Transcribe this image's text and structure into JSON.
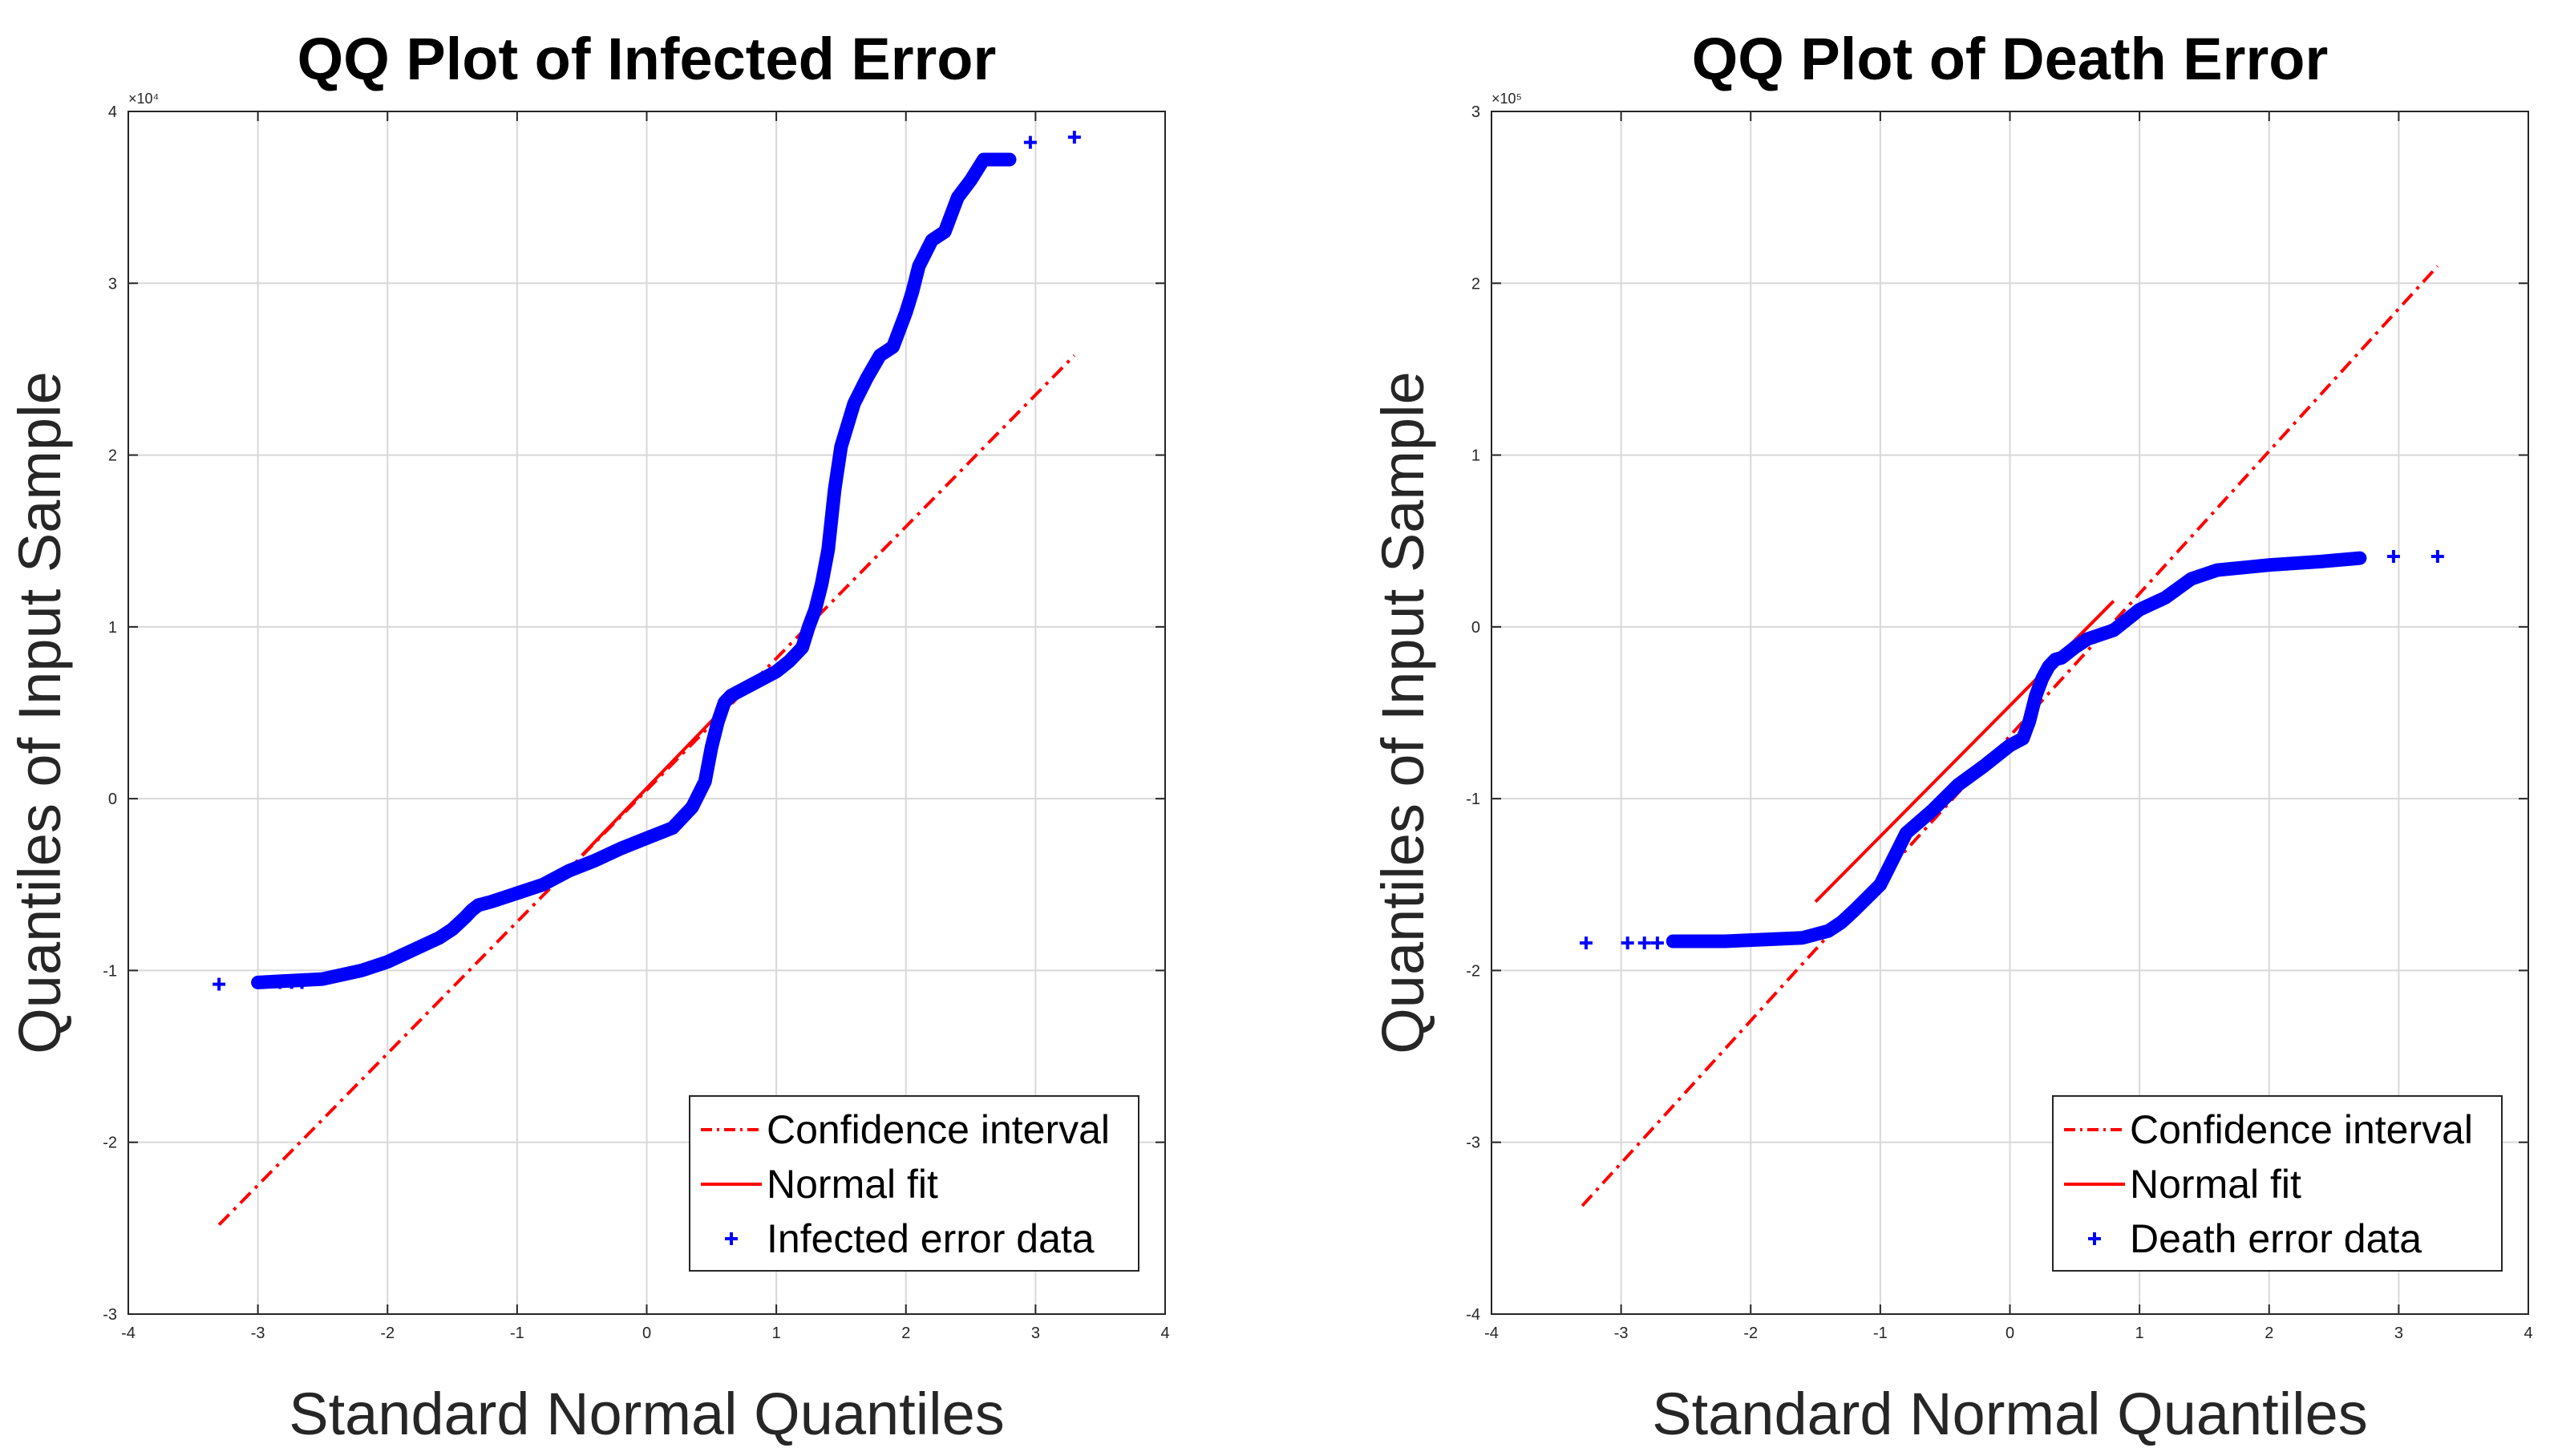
{
  "colors": {
    "fit": "#ff0000",
    "data": "#0000ff"
  },
  "chart_data": [
    {
      "type": "scatter",
      "title": "QQ Plot of Infected Error",
      "xlabel": "Standard Normal Quantiles",
      "ylabel": "Quantiles of Input Sample",
      "xlim": [
        -4,
        4
      ],
      "ylim": [
        -3,
        4
      ],
      "y_multiplier": "×10⁴",
      "xticks": [
        "-4",
        "-3",
        "-2",
        "-1",
        "0",
        "1",
        "2",
        "3",
        "4"
      ],
      "yticks": [
        "-3",
        "-2",
        "-1",
        "0",
        "1",
        "2",
        "3",
        "4"
      ],
      "grid": true,
      "legend": {
        "position": "bottom-right",
        "entries": [
          "Confidence interval",
          "Normal fit",
          "Infected error data"
        ]
      },
      "reference_line": {
        "x": [
          -3.3,
          3.3
        ],
        "y": [
          -2.48,
          2.58
        ]
      },
      "normal_fit": {
        "x": [
          -0.5,
          0.6
        ],
        "y": [
          -0.33,
          0.53
        ]
      },
      "data_curve": {
        "x": [
          -3.0,
          -2.5,
          -2.2,
          -2.0,
          -1.8,
          -1.6,
          -1.5,
          -1.4,
          -1.35,
          -1.3,
          -1.2,
          -1.0,
          -0.8,
          -0.6,
          -0.4,
          -0.2,
          0.0,
          0.2,
          0.35,
          0.45,
          0.5,
          0.55,
          0.6,
          0.65,
          0.7,
          0.8,
          1.0,
          1.1,
          1.2,
          1.25,
          1.3,
          1.35,
          1.4,
          1.45,
          1.5,
          1.6,
          1.7,
          1.8,
          1.9,
          2.0,
          2.05,
          2.1,
          2.2,
          2.3,
          2.4,
          2.5,
          2.6,
          2.8
        ],
        "y": [
          -1.07,
          -1.05,
          -1.0,
          -0.95,
          -0.88,
          -0.81,
          -0.76,
          -0.69,
          -0.65,
          -0.62,
          -0.6,
          -0.55,
          -0.5,
          -0.42,
          -0.36,
          -0.29,
          -0.23,
          -0.17,
          -0.05,
          0.1,
          0.3,
          0.45,
          0.56,
          0.6,
          0.62,
          0.66,
          0.74,
          0.8,
          0.88,
          1.0,
          1.1,
          1.25,
          1.45,
          1.8,
          2.05,
          2.3,
          2.45,
          2.58,
          2.63,
          2.83,
          2.95,
          3.1,
          3.25,
          3.3,
          3.5,
          3.6,
          3.72,
          3.72
        ]
      },
      "points": [
        {
          "x": -3.3,
          "y": -1.08
        },
        {
          "x": -2.98,
          "y": -1.07
        },
        {
          "x": -2.83,
          "y": -1.07
        },
        {
          "x": -2.74,
          "y": -1.07
        },
        {
          "x": -2.66,
          "y": -1.07
        },
        {
          "x": 2.96,
          "y": 3.82
        },
        {
          "x": 3.3,
          "y": 3.85
        }
      ],
      "series_names": {
        "reference": "Confidence interval",
        "fit": "Normal fit",
        "data": "Infected error data"
      }
    },
    {
      "type": "scatter",
      "title": "QQ Plot of Death Error",
      "xlabel": "Standard Normal Quantiles",
      "ylabel": "Quantiles of Input Sample",
      "xlim": [
        -4,
        4
      ],
      "ylim": [
        -4,
        3
      ],
      "y_multiplier": "×10⁵",
      "xticks": [
        "-4",
        "-3",
        "-2",
        "-1",
        "0",
        "1",
        "2",
        "3",
        "4"
      ],
      "yticks": [
        "-4",
        "-3",
        "-2",
        "-1",
        "0",
        "1",
        "2",
        "3"
      ],
      "grid": true,
      "legend": {
        "position": "bottom-right",
        "entries": [
          "Confidence interval",
          "Normal fit",
          "Death error data"
        ]
      },
      "reference_line": {
        "x": [
          -3.3,
          3.3
        ],
        "y": [
          -3.37,
          2.1
        ]
      },
      "normal_fit": {
        "x": [
          -1.5,
          0.8
        ],
        "y": [
          -1.6,
          0.15
        ]
      },
      "data_curve": {
        "x": [
          -2.6,
          -2.2,
          -1.9,
          -1.6,
          -1.4,
          -1.3,
          -1.2,
          -1.0,
          -0.8,
          -0.6,
          -0.4,
          -0.2,
          0.0,
          0.1,
          0.15,
          0.2,
          0.25,
          0.3,
          0.35,
          0.4,
          0.5,
          0.6,
          0.8,
          1.0,
          1.2,
          1.4,
          1.6,
          2.0,
          2.4,
          2.7
        ],
        "y": [
          -1.83,
          -1.83,
          -1.82,
          -1.81,
          -1.77,
          -1.72,
          -1.65,
          -1.5,
          -1.2,
          -1.07,
          -0.92,
          -0.81,
          -0.69,
          -0.65,
          -0.55,
          -0.4,
          -0.3,
          -0.23,
          -0.19,
          -0.18,
          -0.12,
          -0.07,
          -0.02,
          0.1,
          0.17,
          0.28,
          0.33,
          0.36,
          0.38,
          0.4
        ]
      },
      "points": [
        {
          "x": -3.27,
          "y": -1.84
        },
        {
          "x": -2.95,
          "y": -1.84
        },
        {
          "x": -2.82,
          "y": -1.84
        },
        {
          "x": -2.72,
          "y": -1.84
        },
        {
          "x": 2.96,
          "y": 0.41
        },
        {
          "x": 3.3,
          "y": 0.41
        }
      ],
      "series_names": {
        "reference": "Confidence interval",
        "fit": "Normal fit",
        "data": "Death error data"
      }
    }
  ]
}
